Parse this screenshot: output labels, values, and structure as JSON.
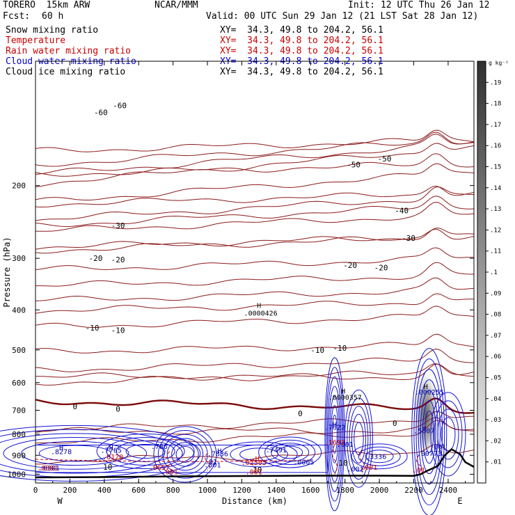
{
  "header": {
    "model": "TORERO  15km ARW",
    "fcst_label": "Fcst:",
    "fcst_value": "60 h",
    "center": "NCAR/MMM",
    "init": "Init: 12 UTC Thu 26 Jan 12",
    "valid": "Valid: 00 UTC Sun 29 Jan 12 (21 LST Sat 28 Jan 12)"
  },
  "fields": [
    {
      "label": "Snow mixing ratio",
      "xy": "XY=  34.3, 49.8 to 204.2, 56.1",
      "color": "#000000"
    },
    {
      "label": "Temperature",
      "xy": "XY=  34.3, 49.8 to 204.2, 56.1",
      "color": "#cc0000"
    },
    {
      "label": "Rain water mixing ratio",
      "xy": "XY=  34.3, 49.8 to 204.2, 56.1",
      "color": "#cc0000"
    },
    {
      "label": "Cloud water mixing ratio",
      "xy": "XY=  34.3, 49.8 to 204.2, 56.1",
      "color": "#0000cc"
    },
    {
      "label": "Cloud ice mixing ratio",
      "xy": "XY=  34.3, 49.8 to 204.2, 56.1",
      "color": "#000000"
    }
  ],
  "chart_data": {
    "type": "cross-section contour",
    "xlabel": "Distance (km)",
    "ylabel": "Pressure (hPa)",
    "x_ticks": [
      0,
      200,
      400,
      600,
      800,
      1000,
      1200,
      1400,
      1600,
      1800,
      2000,
      2200,
      2400
    ],
    "y_ticks": [
      200,
      300,
      400,
      500,
      600,
      700,
      800,
      900,
      1000
    ],
    "xlim": [
      0,
      2550
    ],
    "ylim": [
      100,
      1050
    ],
    "y_scale": "log",
    "x_end_labels": {
      "left": "W",
      "right": "E"
    },
    "temperature_contours_C": [
      {
        "value": -60,
        "p_start": 178,
        "p_end": 155,
        "label_at": [
          [
            380,
            133
          ],
          [
            490,
            128
          ]
        ]
      },
      {
        "value": -50,
        "p_start": 198,
        "p_end": 162,
        "label_at": [
          [
            1850,
            178
          ],
          [
            2030,
            172
          ]
        ]
      },
      {
        "value": -40,
        "p_start": 242,
        "p_end": 212,
        "label_at": [
          [
            2130,
            230
          ]
        ]
      },
      {
        "value": -30,
        "p_start": 258,
        "p_end": 235,
        "label_at": [
          [
            480,
            250
          ],
          [
            2170,
            268
          ]
        ]
      },
      {
        "value": -20,
        "p_start": 320,
        "p_end": 300,
        "label_at": [
          [
            350,
            300
          ],
          [
            480,
            302
          ],
          [
            1830,
            312
          ],
          [
            2010,
            316
          ]
        ]
      },
      {
        "value": -10,
        "p_start": 505,
        "p_end": 485,
        "label_at": [
          [
            330,
            442
          ],
          [
            480,
            448
          ],
          [
            1640,
            500
          ],
          [
            1770,
            495
          ]
        ]
      },
      {
        "value": 0,
        "p_start": 665,
        "p_end": 698,
        "label_at": [
          [
            230,
            685
          ],
          [
            480,
            694
          ],
          [
            1540,
            712
          ],
          [
            2090,
            752
          ]
        ]
      },
      {
        "value": 10,
        "p_start": 930,
        "p_end": 880,
        "label_at": [
          [
            420,
            960
          ],
          [
            1290,
            975
          ],
          [
            1790,
            938
          ]
        ]
      }
    ],
    "extra_contour_levels_C": [
      -55,
      -45,
      -35,
      -25,
      -15,
      -5,
      5
    ],
    "annotations": [
      {
        "text": "H",
        "x": 1300,
        "p": 396
      },
      {
        "text": ".0000426",
        "x": 1310,
        "p": 413
      },
      {
        "text": "H",
        "x": 1790,
        "p": 638
      },
      {
        "text": ".0000357",
        "x": 1800,
        "p": 660
      },
      {
        "text": "H",
        "x": 2270,
        "p": 622
      },
      {
        "text": ".000255",
        "x": 2290,
        "p": 642
      },
      {
        "text": "H",
        "x": 150,
        "p": 875
      },
      {
        "text": ".8278",
        "x": 150,
        "p": 893
      },
      {
        "text": "H",
        "x": 440,
        "p": 875
      },
      {
        "text": ".7765",
        "x": 440,
        "p": 887
      },
      {
        "text": ".786",
        "x": 720,
        "p": 868
      },
      {
        "text": "H",
        "x": 1070,
        "p": 890
      },
      {
        "text": ".7836",
        "x": 1060,
        "p": 905
      },
      {
        "text": ".7491",
        "x": 1400,
        "p": 885
      },
      {
        "text": "H",
        "x": 1740,
        "p": 768
      },
      {
        "text": ".7622",
        "x": 1740,
        "p": 780
      },
      {
        "text": "H",
        "x": 2260,
        "p": 783
      },
      {
        "text": ".5607",
        "x": 2260,
        "p": 795
      },
      {
        "text": ".001",
        "x": 1800,
        "p": 858
      },
      {
        "text": ".3336",
        "x": 1980,
        "p": 918
      },
      {
        "text": ".00773",
        "x": 2290,
        "p": 903
      },
      {
        "text": ".001",
        "x": 2340,
        "p": 870
      },
      {
        "text": ".0381",
        "x": 80,
        "p": 980
      },
      {
        "text": ".01",
        "x": 1020,
        "p": 945
      },
      {
        "text": ".001",
        "x": 1030,
        "p": 962
      },
      {
        "text": ".0005",
        "x": 1560,
        "p": 948
      },
      {
        "text": ".001",
        "x": 1860,
        "p": 985
      }
    ],
    "rain_annotations": [
      {
        "text": ".0120",
        "x": 450,
        "p": 920
      },
      {
        "text": ".0381",
        "x": 70,
        "p": 980
      },
      {
        "text": ".0657",
        "x": 720,
        "p": 975
      },
      {
        "text": ".02505",
        "x": 1270,
        "p": 950
      },
      {
        "text": "H",
        "x": 1290,
        "p": 930
      },
      {
        "text": ".1692",
        "x": 1740,
        "p": 848
      },
      {
        "text": ".001",
        "x": 780,
        "p": 1000
      },
      {
        "text": ".001",
        "x": 1270,
        "p": 1000
      },
      {
        "text": ".001",
        "x": 1940,
        "p": 975
      },
      {
        "text": ".01",
        "x": 2230,
        "p": 990
      }
    ],
    "colorbar": {
      "unit_label": "g kg⁻¹",
      "ticks": [
        ".19",
        ".18",
        ".17",
        ".16",
        ".15",
        ".14",
        ".13",
        ".12",
        ".11",
        ".1",
        ".09",
        ".08",
        ".07",
        ".06",
        ".05",
        ".04",
        ".03",
        ".02",
        ".01"
      ]
    },
    "terrain_pressure_hPa": [
      [
        0,
        1018
      ],
      [
        400,
        1016
      ],
      [
        800,
        1012
      ],
      [
        1200,
        1010
      ],
      [
        1600,
        1008
      ],
      [
        2000,
        1008
      ],
      [
        2200,
        1009
      ],
      [
        2240,
        1000
      ],
      [
        2280,
        980
      ],
      [
        2340,
        955
      ],
      [
        2380,
        900
      ],
      [
        2420,
        870
      ],
      [
        2470,
        895
      ],
      [
        2500,
        935
      ],
      [
        2550,
        960
      ]
    ],
    "ice_max_x_km": 2270,
    "ice_max_p_hPa": 720
  }
}
